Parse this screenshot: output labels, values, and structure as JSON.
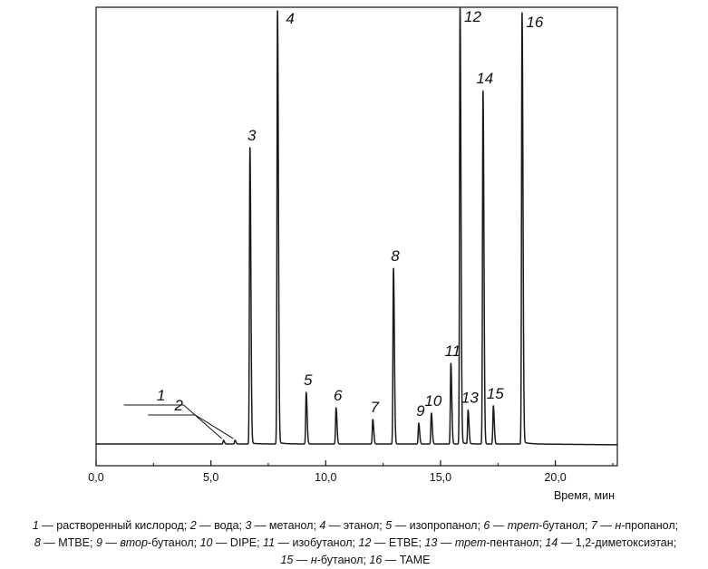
{
  "chart_data": {
    "type": "line",
    "title": "",
    "xlabel": "Время, мин",
    "ylabel": "",
    "xlim": [
      0,
      22.7
    ],
    "x_ticks": [
      "0,0",
      "5,0",
      "10,0",
      "15,0",
      "20,0"
    ],
    "x_tick_values": [
      0,
      5,
      10,
      15,
      20
    ],
    "grid": false,
    "legend": "none",
    "line_color": "#1a1a1a",
    "baseline": 2,
    "peaks": [
      {
        "label": "1",
        "time": 5.55,
        "height": 4
      },
      {
        "label": "2",
        "time": 6.05,
        "height": 4
      },
      {
        "label": "3",
        "time": 6.7,
        "height": 327
      },
      {
        "label": "4",
        "time": 7.9,
        "height": 478
      },
      {
        "label": "5",
        "time": 9.15,
        "height": 57
      },
      {
        "label": "6",
        "time": 10.45,
        "height": 40
      },
      {
        "label": "7",
        "time": 12.05,
        "height": 27
      },
      {
        "label": "8",
        "time": 12.95,
        "height": 194
      },
      {
        "label": "9",
        "time": 14.05,
        "height": 23
      },
      {
        "label": "10",
        "time": 14.6,
        "height": 34
      },
      {
        "label": "11",
        "time": 15.45,
        "height": 89
      },
      {
        "label": "12",
        "time": 15.85,
        "height": 480
      },
      {
        "label": "13",
        "time": 16.2,
        "height": 37
      },
      {
        "label": "14",
        "time": 16.85,
        "height": 390
      },
      {
        "label": "15",
        "time": 17.3,
        "height": 42
      },
      {
        "label": "16",
        "time": 18.55,
        "height": 474
      }
    ]
  },
  "caption": {
    "lines": [
      [
        {
          "t": "1",
          "i": true
        },
        {
          "t": " — растворенный кислород; "
        },
        {
          "t": "2",
          "i": true
        },
        {
          "t": " — вода; "
        },
        {
          "t": "3",
          "i": true
        },
        {
          "t": " — метанол; "
        },
        {
          "t": "4",
          "i": true
        },
        {
          "t": " — этанол; "
        },
        {
          "t": "5",
          "i": true
        },
        {
          "t": " — изопропанол; "
        },
        {
          "t": "6",
          "i": true
        },
        {
          "t": " — "
        },
        {
          "t": "трет",
          "i": true
        },
        {
          "t": "-бутанол; "
        },
        {
          "t": "7",
          "i": true
        },
        {
          "t": " — "
        },
        {
          "t": "н",
          "i": true
        },
        {
          "t": "-пропанол;"
        }
      ],
      [
        {
          "t": "8",
          "i": true
        },
        {
          "t": " — MTBE; "
        },
        {
          "t": "9",
          "i": true
        },
        {
          "t": " — "
        },
        {
          "t": "втор",
          "i": true
        },
        {
          "t": "-бутанол; "
        },
        {
          "t": "10",
          "i": true
        },
        {
          "t": " — DIPE; "
        },
        {
          "t": "11",
          "i": true
        },
        {
          "t": " — изобутанол; "
        },
        {
          "t": "12",
          "i": true
        },
        {
          "t": " — ETBE; "
        },
        {
          "t": "13",
          "i": true
        },
        {
          "t": " — "
        },
        {
          "t": "трет",
          "i": true
        },
        {
          "t": "-пентанол; "
        },
        {
          "t": "14",
          "i": true
        },
        {
          "t": " — 1,2-диметоксиэтан;"
        }
      ],
      [
        {
          "t": "15",
          "i": true
        },
        {
          "t": " — "
        },
        {
          "t": "н",
          "i": true
        },
        {
          "t": "-бутанол; "
        },
        {
          "t": "16",
          "i": true
        },
        {
          "t": " — TAME"
        }
      ]
    ]
  }
}
